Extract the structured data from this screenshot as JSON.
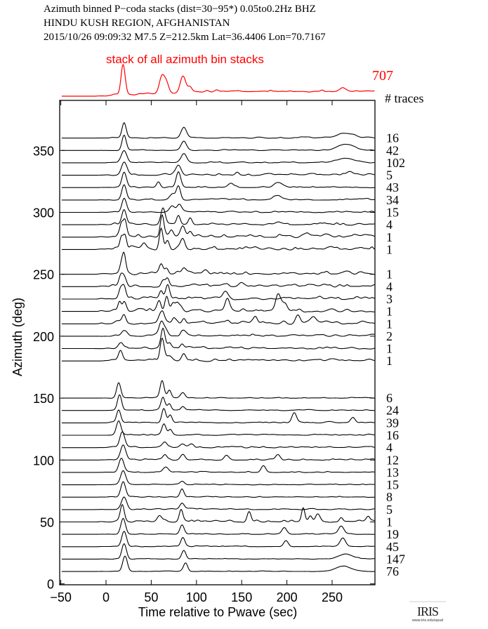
{
  "chart_data": {
    "type": "line",
    "title_lines": [
      "Azimuth binned P−coda stacks (dist=30−95*)  0.05to0.2Hz  BHZ",
      "HINDU KUSH REGION, AFGHANISTAN",
      "2015/10/26  09:09:32  M7.5  Z=212.5km Lat=36.4406 Lon=70.7167"
    ],
    "xlabel": "Time relative to Pwave (sec)",
    "ylabel": "Azimuth (deg)",
    "xlim": [
      -50,
      297
    ],
    "ylim": [
      0,
      390
    ],
    "xticks": [
      "−50",
      "0",
      "50",
      "100",
      "150",
      "200",
      "250"
    ],
    "xtick_values": [
      -50,
      0,
      50,
      100,
      150,
      200,
      250
    ],
    "yticks": [
      "0",
      "50",
      "100",
      "150",
      "200",
      "250",
      "300",
      "350"
    ],
    "ytick_values": [
      0,
      50,
      100,
      150,
      200,
      250,
      300,
      350
    ],
    "stack": {
      "label": "stack of all azimuth bin stacks",
      "count": "707",
      "color": "#ff0000",
      "peaks": [
        [
          19,
          1.0,
          2.3
        ],
        [
          62,
          0.55,
          3
        ],
        [
          67,
          0.3,
          2.5
        ],
        [
          85,
          0.55,
          3
        ],
        [
          93,
          0.15,
          2
        ],
        [
          262,
          0.12,
          4
        ]
      ],
      "noise": 0.05,
      "offset": 0.15
    },
    "count_header": "# traces",
    "trace_color": "#000000",
    "amplitude_unit_deg": 12.4,
    "traces": [
      {
        "azimuth": 360,
        "count": "16",
        "noise": 0.05,
        "peaks": [
          [
            20,
            1,
            2.3
          ],
          [
            86,
            0.7,
            3
          ],
          [
            265,
            0.3,
            9
          ]
        ]
      },
      {
        "azimuth": 350,
        "count": "42",
        "noise": 0.05,
        "peaks": [
          [
            20,
            1,
            2.3
          ],
          [
            86,
            0.6,
            3
          ],
          [
            265,
            0.35,
            9
          ]
        ]
      },
      {
        "azimuth": 340,
        "count": "102",
        "noise": 0.05,
        "peaks": [
          [
            20,
            0.8,
            3
          ],
          [
            86,
            0.55,
            3
          ],
          [
            265,
            0.3,
            9
          ]
        ]
      },
      {
        "azimuth": 330,
        "count": "5",
        "noise": 0.08,
        "peaks": [
          [
            20,
            0.85,
            3
          ],
          [
            80,
            0.6,
            3
          ],
          [
            145,
            0.2,
            2
          ],
          [
            270,
            0.2,
            3
          ]
        ]
      },
      {
        "azimuth": 320,
        "count": "43",
        "noise": 0.06,
        "peaks": [
          [
            20,
            1,
            2.5
          ],
          [
            58,
            0.35,
            2
          ],
          [
            80,
            1,
            2.5
          ],
          [
            138,
            0.3,
            3
          ],
          [
            190,
            0.3,
            4
          ]
        ]
      },
      {
        "azimuth": 310,
        "count": "34",
        "noise": 0.06,
        "peaks": [
          [
            20,
            1,
            2.5
          ],
          [
            73,
            0.35,
            3
          ],
          [
            80,
            0.9,
            2.3
          ],
          [
            190,
            0.25,
            4
          ]
        ]
      },
      {
        "azimuth": 300,
        "count": "15",
        "noise": 0.06,
        "peaks": [
          [
            20,
            0.9,
            2.5
          ],
          [
            73,
            0.4,
            3
          ],
          [
            81,
            0.5,
            2.5
          ]
        ]
      },
      {
        "azimuth": 290,
        "count": "4",
        "noise": 0.1,
        "peaks": [
          [
            20,
            1,
            2.5
          ],
          [
            63,
            1,
            2.5
          ],
          [
            80,
            0.6,
            2
          ],
          [
            93,
            0.4,
            2
          ],
          [
            190,
            0.2,
            3
          ]
        ]
      },
      {
        "azimuth": 280,
        "count": "1",
        "noise": 0.14,
        "peaks": [
          [
            17,
            0.7,
            1.8
          ],
          [
            21,
            0.9,
            1.8
          ],
          [
            62,
            1.4,
            2
          ],
          [
            72,
            0.4,
            2
          ],
          [
            85,
            0.7,
            2.5
          ],
          [
            93,
            0.3,
            2
          ]
        ]
      },
      {
        "azimuth": 270,
        "count": "1",
        "noise": 0.14,
        "peaks": [
          [
            17,
            0.8,
            1.8
          ],
          [
            21,
            0.9,
            1.8
          ],
          [
            61,
            1.4,
            2
          ],
          [
            68,
            0.5,
            2
          ],
          [
            85,
            0.6,
            2.5
          ],
          [
            42,
            0.3,
            2
          ]
        ]
      },
      {
        "azimuth": 250,
        "count": "1",
        "noise": 0.14,
        "peaks": [
          [
            17,
            0.5,
            1.8
          ],
          [
            20,
            1.1,
            1.8
          ],
          [
            61,
            0.7,
            2.2
          ],
          [
            67,
            0.4,
            2
          ],
          [
            86,
            0.4,
            2.5
          ],
          [
            110,
            0.3,
            3
          ]
        ]
      },
      {
        "azimuth": 240,
        "count": "4",
        "noise": 0.13,
        "peaks": [
          [
            16,
            0.5,
            2
          ],
          [
            20,
            0.6,
            2.5
          ],
          [
            63,
            0.4,
            2
          ],
          [
            68,
            0.5,
            2
          ],
          [
            150,
            0.3,
            3
          ]
        ]
      },
      {
        "azimuth": 230,
        "count": "3",
        "noise": 0.13,
        "peaks": [
          [
            16,
            0.6,
            2
          ],
          [
            20,
            0.7,
            2
          ],
          [
            61,
            0.5,
            2
          ],
          [
            68,
            0.8,
            2.2
          ],
          [
            132,
            0.5,
            3
          ]
        ]
      },
      {
        "azimuth": 220,
        "count": "1",
        "noise": 0.15,
        "peaks": [
          [
            15,
            0.6,
            1.8
          ],
          [
            20,
            0.6,
            1.8
          ],
          [
            59,
            0.6,
            2
          ],
          [
            67,
            1.0,
            2
          ],
          [
            74,
            0.5,
            2
          ],
          [
            80,
            0.45,
            3
          ],
          [
            134,
            0.85,
            2.5
          ],
          [
            190,
            0.85,
            2.5
          ],
          [
            196,
            0.4,
            4
          ]
        ]
      },
      {
        "azimuth": 210,
        "count": "1",
        "noise": 0.15,
        "peaks": [
          [
            20,
            0.5,
            2
          ],
          [
            59,
            0.4,
            2
          ],
          [
            63,
            0.6,
            2
          ],
          [
            75,
            0.4,
            2
          ],
          [
            86,
            0.3,
            2
          ],
          [
            165,
            0.4,
            2
          ],
          [
            212,
            0.5,
            2.5
          ],
          [
            230,
            0.3,
            3
          ]
        ]
      },
      {
        "azimuth": 200,
        "count": "2",
        "noise": 0.1,
        "peaks": [
          [
            20,
            0.3,
            3
          ],
          [
            61,
            0.8,
            2.5
          ],
          [
            66,
            0.4,
            2.5
          ],
          [
            86,
            0.3,
            2.5
          ]
        ]
      },
      {
        "azimuth": 190,
        "count": "1",
        "noise": 0.1,
        "peaks": [
          [
            17,
            0.3,
            2.5
          ],
          [
            63,
            1.2,
            2.2
          ],
          [
            70,
            0.3,
            2
          ],
          [
            84,
            0.3,
            2
          ]
        ]
      },
      {
        "azimuth": 180,
        "count": "1",
        "noise": 0.1,
        "peaks": [
          [
            16,
            0.6,
            2.2
          ],
          [
            62,
            1.4,
            2.2
          ],
          [
            70,
            0.3,
            3
          ],
          [
            86,
            0.4,
            2.5
          ]
        ]
      },
      {
        "azimuth": 150,
        "count": "6",
        "noise": 0.04,
        "peaks": [
          [
            14,
            1,
            2.3
          ],
          [
            62,
            1.1,
            2.2
          ],
          [
            70,
            0.5,
            2
          ],
          [
            85,
            0.35,
            2.5
          ]
        ]
      },
      {
        "azimuth": 140,
        "count": "24",
        "noise": 0.04,
        "peaks": [
          [
            15,
            1,
            2.3
          ],
          [
            63,
            0.8,
            2.2
          ],
          [
            70,
            0.4,
            2
          ],
          [
            85,
            0.2,
            2
          ]
        ]
      },
      {
        "azimuth": 130,
        "count": "39",
        "noise": 0.05,
        "peaks": [
          [
            14,
            0.85,
            2.3
          ],
          [
            64,
            0.9,
            2.2
          ],
          [
            71,
            0.5,
            2
          ],
          [
            208,
            0.65,
            2.5
          ],
          [
            273,
            0.35,
            2.5
          ]
        ]
      },
      {
        "azimuth": 120,
        "count": "16",
        "noise": 0.05,
        "peaks": [
          [
            14,
            0.9,
            2.5
          ],
          [
            64,
            0.7,
            2.2
          ],
          [
            71,
            0.35,
            2
          ]
        ]
      },
      {
        "azimuth": 110,
        "count": "4",
        "noise": 0.06,
        "peaks": [
          [
            18,
            1,
            2.8
          ],
          [
            65,
            0.35,
            2.5
          ],
          [
            85,
            0.2,
            2.5
          ],
          [
            94,
            0.2,
            2.5
          ]
        ]
      },
      {
        "azimuth": 100,
        "count": "12",
        "noise": 0.06,
        "peaks": [
          [
            19,
            0.95,
            2.8
          ],
          [
            65,
            0.3,
            2.5
          ],
          [
            85,
            0.35,
            2.5
          ],
          [
            133,
            0.3,
            2.5
          ],
          [
            190,
            0.3,
            2.5
          ]
        ]
      },
      {
        "azimuth": 90,
        "count": "13",
        "noise": 0.05,
        "peaks": [
          [
            17,
            0.9,
            2.8
          ],
          [
            66,
            0.35,
            3
          ],
          [
            174,
            0.45,
            2.5
          ]
        ]
      },
      {
        "azimuth": 80,
        "count": "15",
        "noise": 0.04,
        "peaks": [
          [
            19,
            0.9,
            2.8
          ],
          [
            84,
            0.2,
            2.5
          ]
        ]
      },
      {
        "azimuth": 70,
        "count": "8",
        "noise": 0.04,
        "peaks": [
          [
            19,
            1,
            2.6
          ],
          [
            84,
            0.55,
            2.2
          ]
        ]
      },
      {
        "azimuth": 60,
        "count": "5",
        "noise": 0.05,
        "peaks": [
          [
            20,
            0.8,
            2.8
          ],
          [
            84,
            0.4,
            2.5
          ]
        ]
      },
      {
        "azimuth": 50,
        "count": "1",
        "noise": 0.1,
        "peaks": [
          [
            18,
            1.1,
            2.2
          ],
          [
            59,
            0.35,
            2.5
          ],
          [
            83,
            0.75,
            2
          ],
          [
            158,
            0.65,
            2
          ],
          [
            218,
            0.9,
            1.8
          ],
          [
            226,
            0.4,
            2
          ],
          [
            234,
            0.5,
            2.5
          ],
          [
            260,
            0.3,
            2
          ],
          [
            290,
            0.35,
            2
          ]
        ]
      },
      {
        "azimuth": 40,
        "count": "19",
        "noise": 0.04,
        "peaks": [
          [
            19,
            1,
            2.6
          ],
          [
            84,
            0.6,
            2.3
          ],
          [
            197,
            0.4,
            2.5
          ],
          [
            260,
            0.55,
            3
          ]
        ]
      },
      {
        "azimuth": 30,
        "count": "45",
        "noise": 0.04,
        "peaks": [
          [
            20,
            1,
            2.6
          ],
          [
            85,
            0.6,
            2.3
          ],
          [
            199,
            0.4,
            2.5
          ],
          [
            262,
            0.55,
            3
          ]
        ]
      },
      {
        "azimuth": 20,
        "count": "147",
        "noise": 0.03,
        "peaks": [
          [
            20,
            1,
            2.5
          ],
          [
            86,
            0.55,
            2.3
          ],
          [
            265,
            0.3,
            8
          ]
        ]
      },
      {
        "azimuth": 10,
        "count": "76",
        "noise": 0.03,
        "peaks": [
          [
            21,
            1,
            2.5
          ],
          [
            88,
            0.55,
            2.3
          ],
          [
            262,
            0.35,
            8
          ]
        ]
      }
    ]
  },
  "logo": {
    "text": "IRIS",
    "url_text": "www.iris.edu/spud"
  }
}
